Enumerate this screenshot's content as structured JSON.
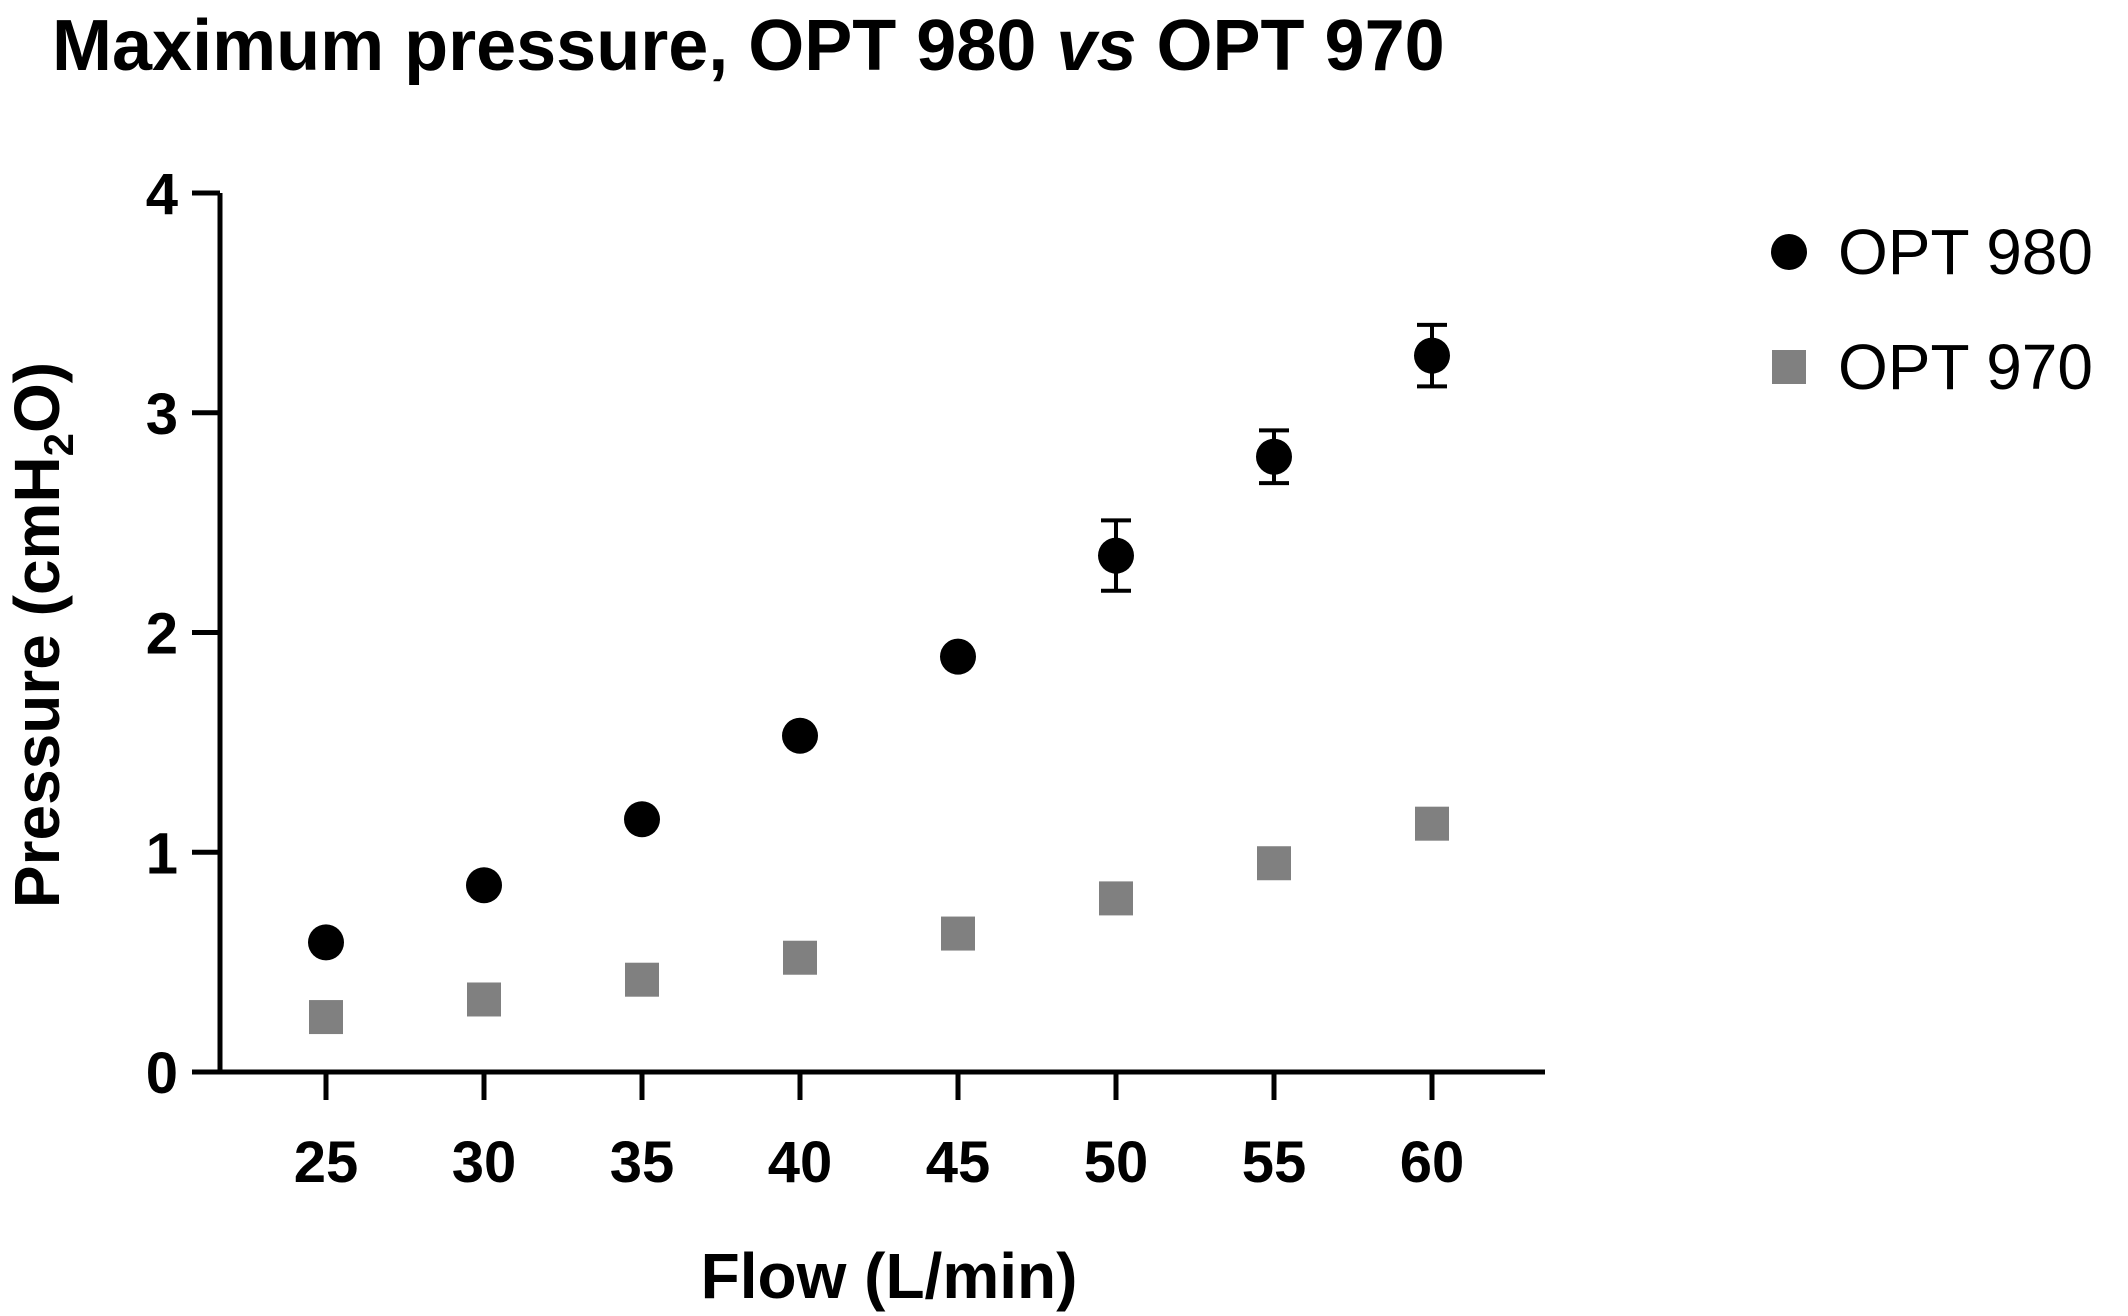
{
  "chart_data": {
    "type": "scatter",
    "title_parts": [
      "Maximum pressure, OPT 980 ",
      "vs",
      " OPT 970"
    ],
    "xlabel": "Flow (L/min)",
    "ylabel_parts": [
      "Pressure (cmH",
      "2",
      "O)"
    ],
    "x": [
      25,
      30,
      35,
      40,
      45,
      50,
      55,
      60
    ],
    "x_ticks": [
      "25",
      "30",
      "35",
      "40",
      "45",
      "50",
      "55",
      "60"
    ],
    "y_ticks": [
      "0",
      "1",
      "2",
      "3",
      "4"
    ],
    "ylim": [
      0,
      4
    ],
    "grid": false,
    "legend_position": "top-right",
    "series": [
      {
        "name": "OPT 980",
        "marker": "circle",
        "color": "#000000",
        "values": [
          0.59,
          0.85,
          1.15,
          1.53,
          1.89,
          2.35,
          2.8,
          3.26
        ],
        "error": [
          0.0,
          0.0,
          0.0,
          0.0,
          0.0,
          0.16,
          0.12,
          0.14
        ]
      },
      {
        "name": "OPT 970",
        "marker": "square",
        "color": "#808080",
        "values": [
          0.25,
          0.33,
          0.42,
          0.52,
          0.63,
          0.79,
          0.95,
          1.13
        ],
        "error": [
          0,
          0,
          0,
          0,
          0,
          0,
          0,
          0
        ]
      }
    ]
  }
}
